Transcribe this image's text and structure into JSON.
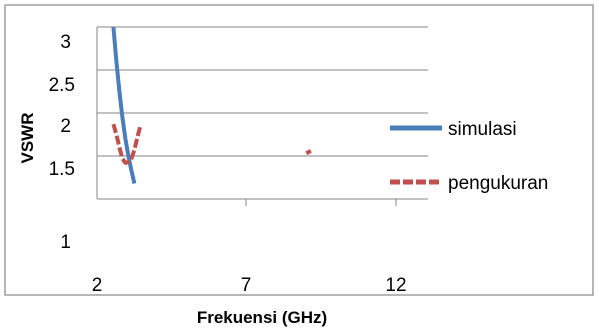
{
  "chart_data": {
    "type": "line",
    "title": "",
    "xlabel": "Frekuensi (GHz)",
    "ylabel": "VSWR",
    "x_ticks": [
      "2",
      "7",
      "12"
    ],
    "y_ticks": [
      "1",
      "1.5",
      "2",
      "2.5",
      "3"
    ],
    "xlim": [
      2,
      13
    ],
    "grid": "horizontal",
    "legend_position": "right",
    "series": [
      {
        "name": "simulasi",
        "color": "#4a7ebb",
        "segments": [
          [
            [
              2.55,
              3.0
            ],
            [
              2.65,
              2.6
            ],
            [
              2.75,
              2.25
            ],
            [
              2.85,
              1.95
            ],
            [
              2.95,
              1.7
            ],
            [
              3.05,
              1.5
            ],
            [
              3.15,
              1.33
            ],
            [
              3.25,
              1.18
            ]
          ]
        ]
      },
      {
        "name": "pengukuran",
        "color": "#c0504d",
        "segments": [
          [
            [
              2.55,
              1.87
            ],
            [
              2.65,
              1.75
            ],
            [
              2.75,
              1.6
            ],
            [
              2.85,
              1.47
            ],
            [
              2.95,
              1.42
            ],
            [
              3.05,
              1.43
            ],
            [
              3.15,
              1.47
            ],
            [
              3.25,
              1.57
            ],
            [
              3.35,
              1.72
            ],
            [
              3.45,
              1.85
            ]
          ],
          [
            [
              9.0,
              1.53
            ],
            [
              9.15,
              1.56
            ]
          ]
        ]
      }
    ]
  }
}
